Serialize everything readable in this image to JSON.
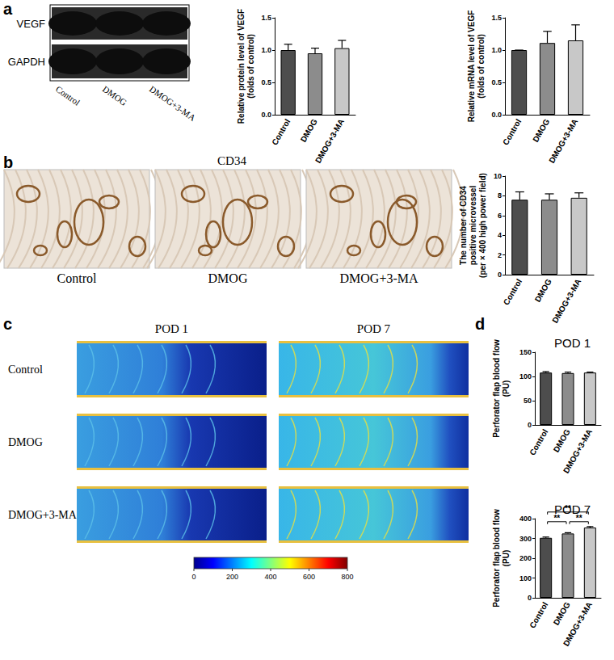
{
  "chart_data": [
    {
      "type": "bar",
      "y_label": "Relative protein level of VEGF\n(folds of control)",
      "categories": [
        "Control",
        "DMOG",
        "DMOG+3-MA"
      ],
      "values": [
        1.0,
        0.95,
        1.03
      ],
      "errors": [
        0.09,
        0.08,
        0.12
      ],
      "colors": [
        "#4d4d4d",
        "#8c8c8c",
        "#c8c8c8"
      ],
      "ylim": [
        0,
        1.5
      ],
      "yticks": [
        {
          "value": 0,
          "label": "0.0"
        },
        0.5,
        {
          "value": 1,
          "label": "1.0"
        },
        1.5
      ],
      "grid": false
    },
    {
      "type": "bar",
      "y_label": "Relative mRNA level of VEGF\n(folds of control)",
      "categories": [
        "Control",
        "DMOG",
        "DMOG+3-MA"
      ],
      "values": [
        1.0,
        1.11,
        1.15
      ],
      "errors": [
        0,
        0.18,
        0.24
      ],
      "colors": [
        "#4d4d4d",
        "#8c8c8c",
        "#c8c8c8"
      ],
      "ylim": [
        0,
        1.5
      ],
      "yticks": [
        {
          "value": 0,
          "label": "0.0"
        },
        0.5,
        {
          "value": 1,
          "label": "1.0"
        },
        1.5
      ],
      "grid": false
    },
    {
      "type": "bar",
      "y_label": "The number of CD34\npositive microvessel\n(per × 400 high power field)",
      "categories": [
        "Control",
        "DMOG",
        "DMOG+3-MA"
      ],
      "values": [
        7.6,
        7.6,
        7.8
      ],
      "errors": [
        0.8,
        0.6,
        0.5
      ],
      "colors": [
        "#4d4d4d",
        "#8c8c8c",
        "#c8c8c8"
      ],
      "ylim": [
        0,
        10
      ],
      "yticks": [
        0,
        2,
        4,
        6,
        8,
        10
      ],
      "grid": false
    },
    {
      "type": "bar",
      "title": "POD 1",
      "y_label": "Perforator flap blood flow\n(PU)",
      "categories": [
        "Control",
        "DMOG",
        "DMOG+3-MA"
      ],
      "values": [
        108,
        107,
        108
      ],
      "errors": [
        2,
        2,
        1
      ],
      "colors": [
        "#4d4d4d",
        "#8c8c8c",
        "#c8c8c8"
      ],
      "ylim": [
        0,
        150
      ],
      "yticks": [
        0,
        50,
        100,
        150
      ],
      "grid": false
    },
    {
      "type": "bar",
      "title": "POD 7",
      "y_label": "Perforator flap blood flow\n(PU)",
      "categories": [
        "Control",
        "DMOG",
        "DMOG+3-MA"
      ],
      "values": [
        303,
        325,
        355
      ],
      "errors": [
        4,
        4,
        5
      ],
      "colors": [
        "#4d4d4d",
        "#8c8c8c",
        "#c8c8c8"
      ],
      "ylim": [
        0,
        400
      ],
      "yticks": [
        0,
        100,
        200,
        300,
        400
      ],
      "grid": false,
      "significance": [
        {
          "pair": [
            "Control",
            "DMOG"
          ],
          "label": "**"
        },
        {
          "pair": [
            "Control",
            "DMOG+3-MA"
          ],
          "label": "**"
        },
        {
          "pair": [
            "DMOG",
            "DMOG+3-MA"
          ],
          "label": "**"
        }
      ]
    }
  ],
  "figure": {
    "panel_labels": [
      "a",
      "b",
      "c",
      "d"
    ],
    "blot": {
      "bands": [
        "VEGF",
        "GAPDH"
      ],
      "lanes": [
        "Control",
        "DMOG",
        "DMOG+3-MA"
      ]
    },
    "ihc": {
      "title": "CD34",
      "images": [
        "Control",
        "DMOG",
        "DMOG+3-MA"
      ]
    },
    "doppler": {
      "columns": [
        "POD 1",
        "POD 7"
      ],
      "rows": [
        "Control",
        "DMOG",
        "DMOG+3-MA"
      ],
      "colorbar": {
        "range": [
          0,
          800
        ],
        "ticks": [
          0,
          200,
          400,
          600,
          800
        ]
      }
    }
  }
}
